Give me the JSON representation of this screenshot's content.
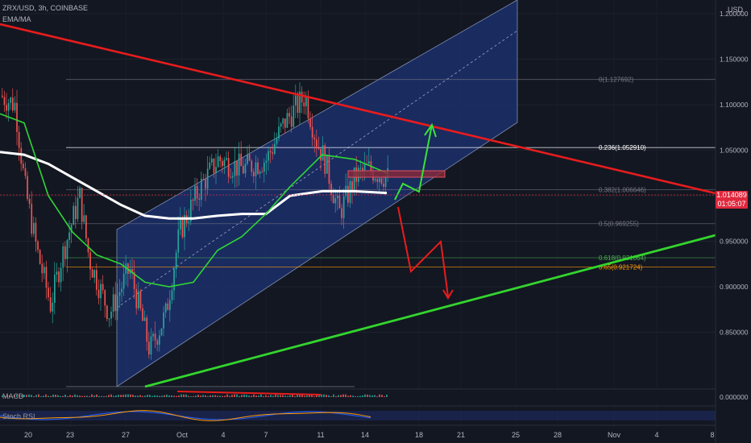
{
  "header": {
    "symbol_line": "ZRX/USD, 3h, COINBASE",
    "indicator_line": "EMA/MA"
  },
  "price_axis": {
    "currency": "USD",
    "ticks": [
      "1.200000",
      "1.150000",
      "1.100000",
      "1.050000",
      "1.000000",
      "0.950000",
      "0.900000",
      "0.850000"
    ],
    "macd_tick": "0.000000"
  },
  "last_price": {
    "value": "1.014089",
    "countdown": "01:05:07"
  },
  "time_axis": {
    "labels": [
      "20",
      "23",
      "27",
      "Oct",
      "4",
      "7",
      "11",
      "14",
      "18",
      "21",
      "25",
      "28",
      "Nov",
      "4",
      "8"
    ]
  },
  "fib_levels": [
    {
      "label": "0(1.127692)",
      "value": 1.127692
    },
    {
      "label": "0.236(1.052910)",
      "value": 1.05291
    },
    {
      "label": "0.382(1.006646)",
      "value": 1.006646
    },
    {
      "label": "0.5(0.969255)",
      "value": 0.969255
    },
    {
      "label": "0.618(0.931864)",
      "value": 0.931864
    },
    {
      "label": "0.65(0.921724)",
      "value": 0.921724
    }
  ],
  "indicators": {
    "macd_label": "MACD",
    "stoch_label": "Stoch RSI"
  },
  "colors": {
    "background": "#131722",
    "channel_fill": "#1c2f6b",
    "resistance_line": "#e81c1c",
    "support_line": "#33d52d",
    "ema_line": "#2ed634",
    "ma_line": "#ffffff",
    "candle_up": "#26a69a",
    "candle_down": "#ef5350",
    "fib_0618": "#4caf50",
    "fib_065": "#ff9800",
    "last_price_box": "#e0283d"
  },
  "chart_data": {
    "type": "candlestick",
    "title": "ZRX/USD, 3h, COINBASE",
    "ylabel": "USD",
    "ylim": [
      0.81,
      1.215
    ],
    "ma_line_values": [
      1.048,
      1.045,
      1.035,
      1.02,
      1.005,
      0.99,
      0.978,
      0.975,
      0.975,
      0.978,
      0.98,
      0.98,
      1.0,
      1.005,
      1.005,
      1.003
    ],
    "ema_line_values": [
      1.09,
      1.08,
      1.0,
      0.96,
      0.935,
      0.925,
      0.905,
      0.9,
      0.905,
      0.94,
      0.955,
      0.98,
      1.01,
      1.045,
      1.04,
      1.025
    ]
  }
}
